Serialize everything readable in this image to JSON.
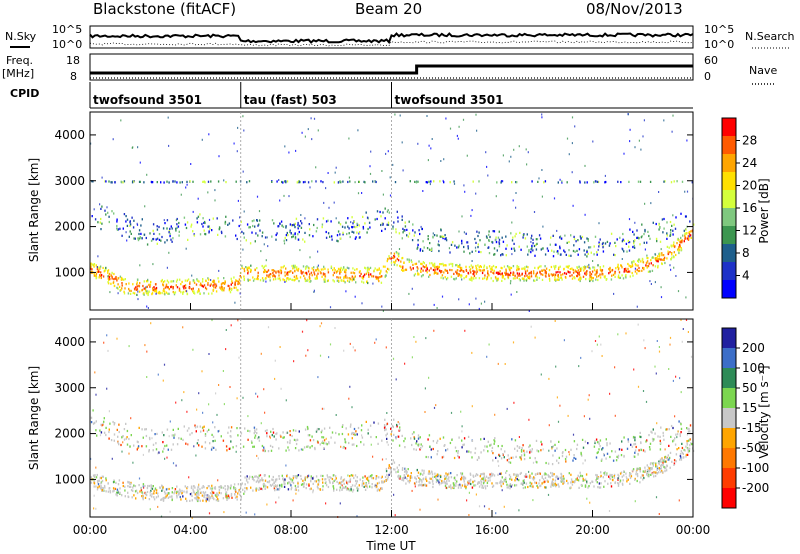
{
  "header": {
    "station": "Blackstone (fitACF)",
    "beam": "Beam 20",
    "date": "08/Nov/2013"
  },
  "left_labels": {
    "nsky": "N.Sky",
    "freq": "Freq.",
    "freq_unit": "[MHz]",
    "cpid": "CPID"
  },
  "right_labels": {
    "nsearch": "N.Search",
    "nave": "Nave"
  },
  "noise_axis": {
    "left_ticks": [
      "10^5",
      "10^0"
    ],
    "right_ticks": [
      "10^5",
      "10^0"
    ]
  },
  "freq_axis": {
    "left_ticks": [
      "18",
      "8"
    ],
    "right_ticks": [
      "60",
      "0"
    ]
  },
  "cpid_segments": [
    {
      "label": "twofsound 3501",
      "start_hour": 0
    },
    {
      "label": "tau (fast) 503",
      "start_hour": 6
    },
    {
      "label": "twofsound 3501",
      "start_hour": 12
    }
  ],
  "time_axis": {
    "label": "Time UT",
    "ticks": [
      "00:00",
      "04:00",
      "08:00",
      "12:00",
      "16:00",
      "20:00",
      "00:00"
    ]
  },
  "range_axis": {
    "label": "Slant Range [km]",
    "ticks": [
      "1000",
      "2000",
      "3000",
      "4000"
    ]
  },
  "power_scale": {
    "label": "Power [dB]",
    "ticks": [
      "28",
      "24",
      "20",
      "16",
      "12",
      "8",
      "4"
    ],
    "colors": [
      "#ff0000",
      "#ff5a00",
      "#ffa500",
      "#ffe000",
      "#d4ff3c",
      "#7fc87f",
      "#3c9650",
      "#1e5f8c",
      "#1e32c8",
      "#0000ff"
    ]
  },
  "velocity_scale": {
    "label": "Velocity [m s⁻¹]",
    "ticks": [
      "200",
      "100",
      "50",
      "15",
      "-15",
      "-50",
      "-100",
      "-200"
    ],
    "colors": [
      "#2020a0",
      "#3c6ec8",
      "#2e8b57",
      "#7cd650",
      "#c8c8c8",
      "#ffa500",
      "#ff7800",
      "#ff3c00",
      "#ff0000"
    ]
  },
  "chart_data": {
    "type": "heatmap",
    "x_range_hours": [
      0,
      24
    ],
    "y_range_km": [
      180,
      4500
    ],
    "power_bands": [
      {
        "name": "low-range band",
        "points": [
          [
            0.0,
            1100
          ],
          [
            1.0,
            860
          ],
          [
            1.4,
            700
          ],
          [
            3.0,
            700
          ],
          [
            4.5,
            720
          ],
          [
            5.0,
            740
          ],
          [
            5.9,
            750
          ],
          [
            6.0,
            1000
          ],
          [
            8.0,
            1000
          ],
          [
            10.0,
            980
          ],
          [
            11.6,
            950
          ],
          [
            12.0,
            1400
          ],
          [
            12.5,
            1150
          ],
          [
            14.0,
            1050
          ],
          [
            16.0,
            1000
          ],
          [
            18.0,
            1000
          ],
          [
            20.0,
            1000
          ],
          [
            21.5,
            1080
          ],
          [
            22.5,
            1250
          ],
          [
            23.3,
            1550
          ],
          [
            24.0,
            1900
          ]
        ],
        "value_db": 26
      },
      {
        "name": "mid-range band",
        "points": [
          [
            0.0,
            2300
          ],
          [
            1.0,
            2100
          ],
          [
            2.5,
            1850
          ],
          [
            4.0,
            2000
          ],
          [
            5.0,
            2100
          ],
          [
            6.0,
            1900
          ],
          [
            8.0,
            1950
          ],
          [
            10.0,
            1950
          ],
          [
            12.0,
            2200
          ],
          [
            13.0,
            1750
          ],
          [
            15.0,
            1700
          ],
          [
            18.0,
            1600
          ],
          [
            21.0,
            1650
          ],
          [
            23.5,
            2100
          ],
          [
            24.0,
            2100
          ]
        ],
        "value_db": 14
      },
      {
        "name": "far-range band",
        "points": [
          [
            0.0,
            3000
          ],
          [
            24.0,
            3000
          ]
        ],
        "value_db": 10
      }
    ],
    "velocity_bands": [
      {
        "name": "low-range band",
        "points": [
          [
            0.0,
            1000
          ],
          [
            1.0,
            850
          ],
          [
            2.0,
            760
          ],
          [
            3.5,
            700
          ],
          [
            5.0,
            720
          ],
          [
            6.0,
            760
          ],
          [
            6.2,
            950
          ],
          [
            8.0,
            950
          ],
          [
            10.0,
            950
          ],
          [
            11.6,
            950
          ],
          [
            12.0,
            1300
          ],
          [
            12.5,
            1100
          ],
          [
            14.0,
            1000
          ],
          [
            16.0,
            1000
          ],
          [
            18.0,
            1000
          ],
          [
            20.0,
            1000
          ],
          [
            21.5,
            1060
          ],
          [
            22.5,
            1250
          ],
          [
            23.4,
            1550
          ],
          [
            24.0,
            1800
          ]
        ],
        "value_ms": -10
      },
      {
        "name": "mid-range band",
        "points": [
          [
            0.0,
            2300
          ],
          [
            1.0,
            2050
          ],
          [
            2.5,
            1850
          ],
          [
            4.0,
            1950
          ],
          [
            6.0,
            1900
          ],
          [
            8.0,
            1900
          ],
          [
            10.0,
            1950
          ],
          [
            12.0,
            2100
          ],
          [
            13.0,
            1750
          ],
          [
            15.0,
            1700
          ],
          [
            18.0,
            1600
          ],
          [
            21.0,
            1650
          ],
          [
            23.5,
            2050
          ],
          [
            24.0,
            2050
          ]
        ],
        "value_ms": 10
      }
    ]
  }
}
